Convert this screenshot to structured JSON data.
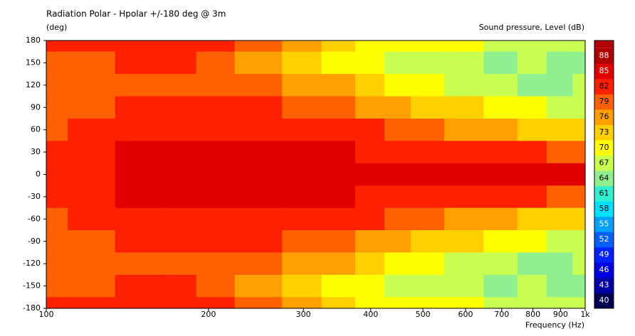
{
  "chart_data": {
    "type": "contour",
    "title": "Radiation Polar - Hpolar +/-180 deg @ 3m",
    "y_label": "(deg)",
    "colorbar_label": "Sound pressure, Level  (dB)",
    "x_label": "Frequency  (Hz)",
    "x": [
      100,
      120,
      150,
      180,
      200,
      250,
      300,
      350,
      400,
      450,
      500,
      600,
      700,
      800,
      900,
      1000
    ],
    "y": [
      180,
      150,
      120,
      90,
      60,
      30,
      0,
      -30,
      -60,
      -90,
      -120,
      -150,
      -180
    ],
    "z": [
      [
        81,
        81,
        82,
        82,
        81,
        78,
        75,
        73,
        71,
        70,
        70,
        69,
        68,
        67,
        67,
        67
      ],
      [
        80,
        80,
        81,
        81,
        80,
        77,
        74,
        71,
        70,
        68,
        67,
        66,
        65,
        66,
        63,
        65
      ],
      [
        80,
        80,
        80,
        80,
        79,
        78,
        77,
        75,
        73,
        71,
        70,
        68,
        66,
        63,
        64,
        66
      ],
      [
        80,
        80,
        81,
        81,
        81,
        81,
        80,
        79,
        77,
        75,
        74,
        72,
        70,
        69,
        68,
        67
      ],
      [
        80,
        81,
        82,
        83,
        83,
        83,
        82,
        82,
        81,
        79,
        78,
        77,
        75,
        74,
        73,
        72
      ],
      [
        81,
        82,
        85,
        85,
        85,
        85,
        85,
        84,
        83,
        82,
        82,
        82,
        81,
        81,
        80,
        79
      ],
      [
        83,
        83,
        86,
        86,
        86,
        86,
        86,
        86,
        84,
        85,
        86,
        86,
        86,
        86,
        86,
        86
      ],
      [
        81,
        82,
        85,
        85,
        85,
        85,
        85,
        84,
        83,
        82,
        82,
        82,
        81,
        81,
        80,
        79
      ],
      [
        80,
        81,
        82,
        83,
        83,
        83,
        82,
        82,
        81,
        79,
        78,
        77,
        75,
        74,
        73,
        72
      ],
      [
        80,
        80,
        81,
        81,
        81,
        81,
        80,
        79,
        77,
        75,
        74,
        72,
        70,
        69,
        68,
        67
      ],
      [
        80,
        80,
        80,
        80,
        79,
        78,
        77,
        75,
        73,
        71,
        70,
        68,
        66,
        63,
        64,
        66
      ],
      [
        80,
        80,
        81,
        81,
        80,
        77,
        74,
        71,
        70,
        68,
        67,
        66,
        65,
        66,
        63,
        65
      ],
      [
        81,
        81,
        82,
        82,
        81,
        78,
        75,
        73,
        71,
        70,
        70,
        69,
        68,
        67,
        67,
        67
      ]
    ],
    "xlim": [
      100,
      1000
    ],
    "x_log": true,
    "xticks": [
      100,
      200,
      300,
      400,
      500,
      600,
      700,
      800,
      900,
      {
        "value": 1000,
        "label": "1k"
      }
    ],
    "ylim": [
      -180,
      180
    ],
    "yticks": [
      -180,
      -150,
      -120,
      -90,
      -60,
      -30,
      0,
      30,
      60,
      90,
      120,
      150,
      180
    ],
    "colorbar_ticks": [
      40,
      43,
      46,
      49,
      52,
      55,
      58,
      61,
      64,
      67,
      70,
      73,
      76,
      79,
      82,
      85,
      88
    ],
    "colors": [
      "#000050",
      "#0000a0",
      "#0000e0",
      "#0020ff",
      "#0060ff",
      "#00a0ff",
      "#00e0ff",
      "#30f0d0",
      "#90f090",
      "#c8ff50",
      "#ffff00",
      "#ffd000",
      "#ffa000",
      "#ff6000",
      "#ff2000",
      "#e00000",
      "#b00000"
    ]
  }
}
